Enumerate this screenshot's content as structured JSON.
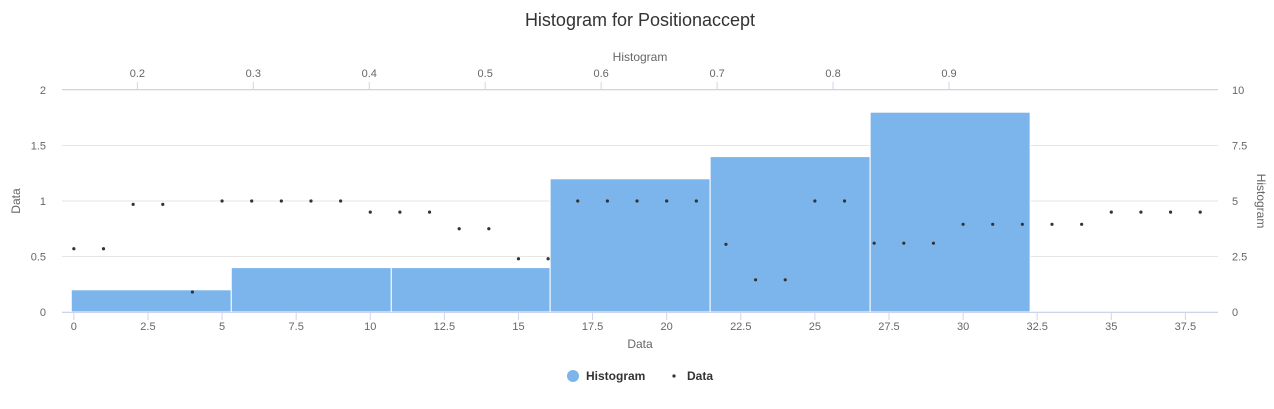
{
  "chart_data": {
    "type": "bar",
    "title": "Histogram for Positionaccept",
    "legend_position": "bottom",
    "grid": true,
    "colors": {
      "histogram": "#7cb5ec",
      "data": "#333333",
      "grid": "#e6e6e6",
      "axis": "#ccd6eb"
    },
    "x_bottom": {
      "label": "Data",
      "range": [
        -0.4,
        38.6
      ],
      "ticks": [
        0,
        2.5,
        5,
        7.5,
        10,
        12.5,
        15,
        17.5,
        20,
        22.5,
        25,
        27.5,
        30,
        32.5,
        35,
        37.5
      ],
      "tick_labels": [
        "0",
        "2.5",
        "5",
        "7.5",
        "10",
        "12.5",
        "15",
        "17.5",
        "20",
        "22.5",
        "25",
        "27.5",
        "30",
        "32.5",
        "35",
        "37.5"
      ]
    },
    "x_top": {
      "label": "Histogram",
      "range": [
        0.135,
        1.132
      ],
      "ticks": [
        0.2,
        0.3,
        0.4,
        0.5,
        0.6,
        0.7,
        0.8,
        0.9
      ],
      "tick_labels": [
        "0.2",
        "0.3",
        "0.4",
        "0.5",
        "0.6",
        "0.7",
        "0.8",
        "0.9"
      ]
    },
    "y_left": {
      "label": "Data",
      "range": [
        0,
        2
      ],
      "ticks": [
        0,
        0.5,
        1,
        1.5,
        2
      ],
      "tick_labels": [
        "0",
        "0.5",
        "1",
        "1.5",
        "2"
      ]
    },
    "y_right": {
      "label": "Histogram",
      "range": [
        0,
        10
      ],
      "ticks": [
        0,
        2.5,
        5,
        7.5,
        10
      ],
      "tick_labels": [
        "0",
        "2.5",
        "5",
        "7.5",
        "10"
      ]
    },
    "series": [
      {
        "name": "Histogram",
        "type": "histogram",
        "bins": [
          {
            "x0": 0.143,
            "x1": 0.281,
            "count": 1
          },
          {
            "x0": 0.281,
            "x1": 0.419,
            "count": 2
          },
          {
            "x0": 0.419,
            "x1": 0.556,
            "count": 2
          },
          {
            "x0": 0.556,
            "x1": 0.694,
            "count": 6
          },
          {
            "x0": 0.694,
            "x1": 0.832,
            "count": 7
          },
          {
            "x0": 0.832,
            "x1": 0.97,
            "count": 9
          }
        ]
      },
      {
        "name": "Data",
        "type": "scatter",
        "x": [
          0,
          1,
          2,
          3,
          4,
          5,
          6,
          7,
          8,
          9,
          10,
          11,
          12,
          13,
          14,
          15,
          16,
          17,
          18,
          19,
          20,
          21,
          22,
          23,
          24,
          25,
          26,
          27,
          28,
          29,
          30,
          31,
          32,
          33,
          34,
          35,
          36,
          37,
          38
        ],
        "y": [
          0.57,
          0.57,
          0.97,
          0.97,
          0.18,
          1.0,
          1.0,
          1.0,
          1.0,
          1.0,
          0.9,
          0.9,
          0.9,
          0.75,
          0.75,
          0.48,
          0.48,
          1.0,
          1.0,
          1.0,
          1.0,
          1.0,
          0.61,
          0.29,
          0.29,
          1.0,
          1.0,
          0.62,
          0.62,
          0.62,
          0.79,
          0.79,
          0.79,
          0.79,
          0.79,
          0.9,
          0.9,
          0.9,
          0.9
        ]
      }
    ]
  }
}
